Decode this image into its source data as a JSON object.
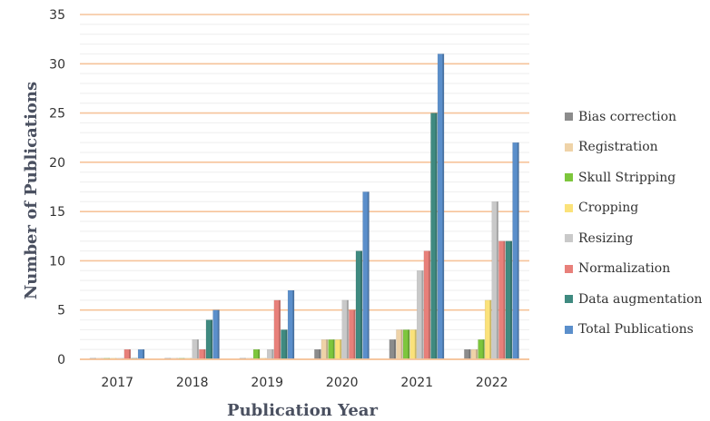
{
  "chart_data": {
    "type": "bar",
    "xlabel": "Publication Year",
    "ylabel": "Number of Publications",
    "ylim": [
      0,
      35
    ],
    "yticks": [
      0,
      5,
      10,
      15,
      20,
      25,
      30,
      35
    ],
    "grid": true,
    "legend_position": "right",
    "categories": [
      "2017",
      "2018",
      "2019",
      "2020",
      "2021",
      "2022"
    ],
    "series": [
      {
        "name": "Bias correction",
        "color": "#8c8c8c",
        "values": [
          0,
          0,
          0,
          1,
          2,
          1
        ]
      },
      {
        "name": "Registration",
        "color": "#efd3a8",
        "values": [
          0,
          0,
          0,
          2,
          3,
          1
        ]
      },
      {
        "name": "Skull Stripping",
        "color": "#7dc63c",
        "values": [
          0,
          0,
          1,
          2,
          3,
          2
        ]
      },
      {
        "name": "Cropping",
        "color": "#fbe27a",
        "values": [
          0,
          0,
          0,
          2,
          3,
          6
        ]
      },
      {
        "name": "Resizing",
        "color": "#c9c9c9",
        "values": [
          0,
          2,
          1,
          6,
          9,
          16
        ]
      },
      {
        "name": "Normalization",
        "color": "#e8807a",
        "values": [
          1,
          1,
          6,
          5,
          11,
          12
        ]
      },
      {
        "name": "Data augmentation",
        "color": "#3f8a80",
        "values": [
          0,
          4,
          3,
          11,
          25,
          12
        ]
      },
      {
        "name": "Total Publications",
        "color": "#5b8fcb",
        "values": [
          1,
          5,
          7,
          17,
          31,
          22
        ]
      }
    ]
  }
}
